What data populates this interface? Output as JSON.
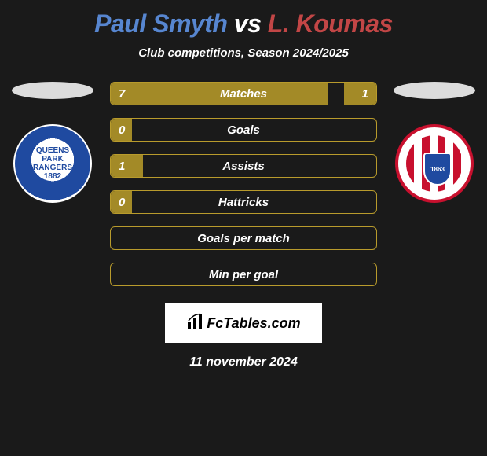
{
  "colors": {
    "accent": "#a38a27",
    "accent_border": "#b89b2c",
    "player1": "#5786d0",
    "player2": "#c24646",
    "bg": "#1a1a1a"
  },
  "title": {
    "player1": "Paul Smyth",
    "vs": "vs",
    "player2": "L. Koumas"
  },
  "subtitle": "Club competitions, Season 2024/2025",
  "crest_left_label": "QUEENS PARK RANGERS 1882",
  "crest_right_label": "1863",
  "bars": [
    {
      "label": "Matches",
      "left": "7",
      "right": "1",
      "left_pct": 82,
      "right_pct": 12
    },
    {
      "label": "Goals",
      "left": "0",
      "right": "",
      "left_pct": 8,
      "right_pct": 0
    },
    {
      "label": "Assists",
      "left": "1",
      "right": "",
      "left_pct": 12,
      "right_pct": 0
    },
    {
      "label": "Hattricks",
      "left": "0",
      "right": "",
      "left_pct": 8,
      "right_pct": 0
    },
    {
      "label": "Goals per match",
      "left": "",
      "right": "",
      "left_pct": 0,
      "right_pct": 0
    },
    {
      "label": "Min per goal",
      "left": "",
      "right": "",
      "left_pct": 0,
      "right_pct": 0
    }
  ],
  "brand": "FcTables.com",
  "date": "11 november 2024"
}
